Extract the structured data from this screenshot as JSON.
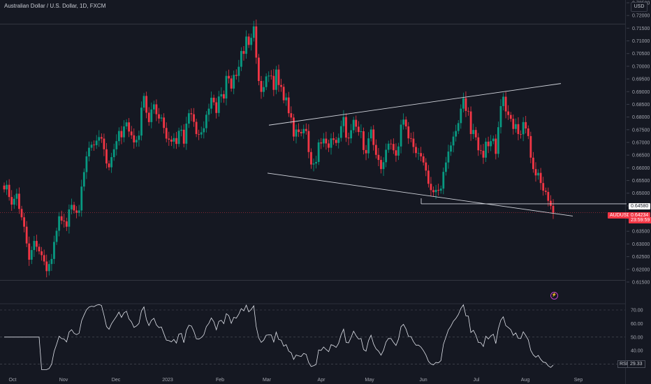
{
  "title": "Australian Dollar / U.S. Dollar, 1D, FXCM",
  "currency_button": "USD",
  "symbol": "AUDUSD",
  "last_price": "0.64234",
  "countdown": "23:59:59",
  "ref_price": "0.64580",
  "rsi_label": "RSI",
  "rsi_value": "29.33",
  "alert_icon": "lightning-icon",
  "colors": {
    "up": "#089981",
    "down": "#f23645",
    "line": "#d1d4dc",
    "bg": "#151822"
  },
  "chart_data": [
    {
      "type": "candlestick",
      "symbol": "AUDUSD",
      "ylim": [
        0.61,
        0.72
      ],
      "yticks": [
        "0.72500",
        "0.72000",
        "0.71500",
        "0.71000",
        "0.70500",
        "0.70000",
        "0.69500",
        "0.69000",
        "0.68500",
        "0.68000",
        "0.67500",
        "0.67000",
        "0.66500",
        "0.66000",
        "0.65500",
        "0.65000",
        "0.64500",
        "0.64000",
        "0.63500",
        "0.63000",
        "0.62500",
        "0.62000",
        "0.61500"
      ],
      "xticks": [
        "Oct",
        "Nov",
        "Dec",
        "2023",
        "Feb",
        "Mar",
        "Apr",
        "May",
        "Jun",
        "Jul",
        "Aug",
        "Sep"
      ],
      "closes": [
        0.6515,
        0.6533,
        0.6485,
        0.6455,
        0.6478,
        0.6498,
        0.6438,
        0.6405,
        0.6368,
        0.6302,
        0.6238,
        0.6276,
        0.6312,
        0.6289,
        0.6271,
        0.6256,
        0.6231,
        0.6193,
        0.6221,
        0.6241,
        0.6308,
        0.6352,
        0.6409,
        0.6392,
        0.6389,
        0.6368,
        0.6436,
        0.6454,
        0.6432,
        0.6423,
        0.6432,
        0.6526,
        0.6583,
        0.6645,
        0.6679,
        0.6691,
        0.6689,
        0.6707,
        0.6721,
        0.6715,
        0.6673,
        0.6617,
        0.6602,
        0.6642,
        0.6673,
        0.6705,
        0.6745,
        0.672,
        0.6763,
        0.6779,
        0.6743,
        0.6728,
        0.67,
        0.671,
        0.6727,
        0.6837,
        0.6883,
        0.6817,
        0.678,
        0.683,
        0.685,
        0.6811,
        0.6794,
        0.6798,
        0.6757,
        0.6715,
        0.6711,
        0.6703,
        0.6717,
        0.6694,
        0.6746,
        0.675,
        0.6695,
        0.6774,
        0.6815,
        0.6811,
        0.6781,
        0.6733,
        0.6731,
        0.674,
        0.6756,
        0.6809,
        0.6833,
        0.6876,
        0.6858,
        0.6816,
        0.6881,
        0.689,
        0.6873,
        0.6962,
        0.6952,
        0.6912,
        0.6966,
        0.6962,
        0.6998,
        0.706,
        0.7049,
        0.7117,
        0.7084,
        0.7112,
        0.7157,
        0.7034,
        0.6942,
        0.6899,
        0.6918,
        0.696,
        0.6963,
        0.6962,
        0.6907,
        0.6987,
        0.6926,
        0.6919,
        0.6866,
        0.6877,
        0.6815,
        0.6798,
        0.6723,
        0.6751,
        0.6741,
        0.6736,
        0.6753,
        0.6745,
        0.6662,
        0.6613,
        0.6617,
        0.6623,
        0.67,
        0.6696,
        0.6715,
        0.6696,
        0.6679,
        0.6716,
        0.671,
        0.6698,
        0.6718,
        0.6764,
        0.68,
        0.6719,
        0.6716,
        0.6748,
        0.6789,
        0.6762,
        0.6741,
        0.6744,
        0.667,
        0.6657,
        0.6716,
        0.6751,
        0.669,
        0.6651,
        0.6631,
        0.6595,
        0.6622,
        0.6671,
        0.6695,
        0.6694,
        0.6669,
        0.6648,
        0.6684,
        0.677,
        0.679,
        0.6763,
        0.6716,
        0.6715,
        0.6682,
        0.6658,
        0.6658,
        0.6645,
        0.6621,
        0.6589,
        0.6537,
        0.6512,
        0.6504,
        0.6513,
        0.651,
        0.6518,
        0.6584,
        0.6621,
        0.6664,
        0.6688,
        0.6723,
        0.6745,
        0.6776,
        0.6833,
        0.6874,
        0.6824,
        0.6822,
        0.6733,
        0.6749,
        0.672,
        0.6669,
        0.6667,
        0.664,
        0.6703,
        0.6685,
        0.6705,
        0.6715,
        0.6655,
        0.676,
        0.6843,
        0.688,
        0.6822,
        0.6808,
        0.6793,
        0.6753,
        0.6772,
        0.6733,
        0.6732,
        0.678,
        0.6755,
        0.6725,
        0.664,
        0.6595,
        0.657,
        0.658,
        0.654,
        0.651,
        0.6505,
        0.647,
        0.645,
        0.6423
      ]
    },
    {
      "type": "line",
      "name": "RSI",
      "ylim": [
        30,
        72
      ],
      "yticks": [
        "70.00",
        "60.00",
        "50.00",
        "40.00"
      ],
      "levels": [
        70,
        50,
        30
      ],
      "value": 29.33
    }
  ]
}
